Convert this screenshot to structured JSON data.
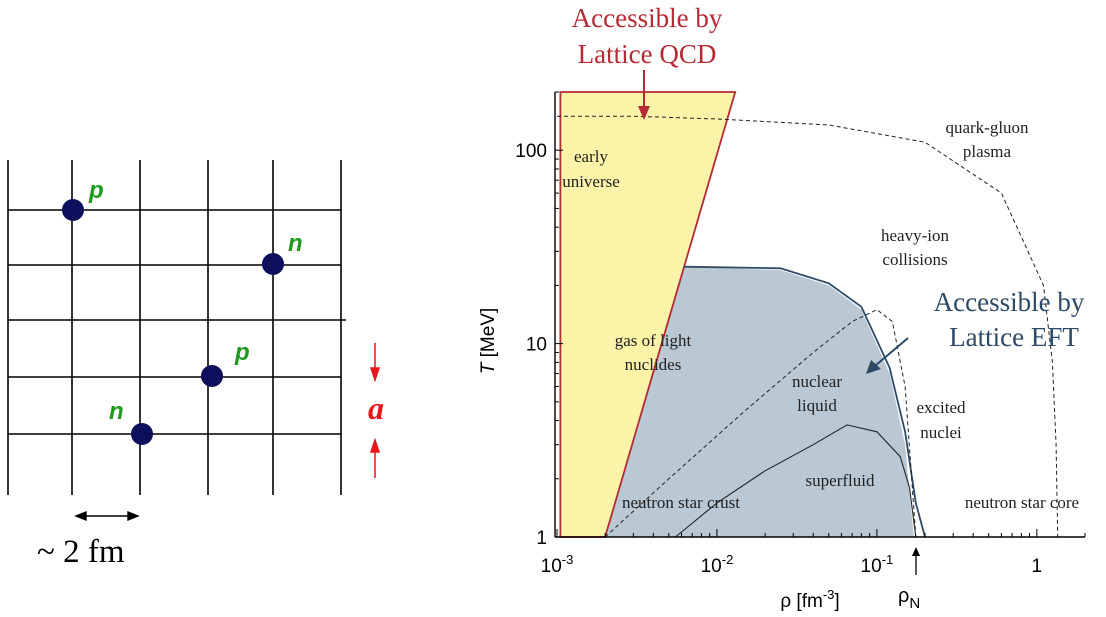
{
  "lattice": {
    "particles": [
      {
        "label": "p"
      },
      {
        "label": "n"
      },
      {
        "label": "p"
      },
      {
        "label": "n"
      }
    ],
    "spacing_label": "~ 2 fm",
    "a_label": "a",
    "particle_color": "#0b0f5c",
    "label_color": "#1e9b1e",
    "a_color": "#e8161b"
  },
  "phase_diagram": {
    "lattice_qcd_label": [
      "Accessible by",
      "Lattice QCD"
    ],
    "lattice_eft_label": [
      "Accessible by",
      "Lattice EFT"
    ],
    "qcd_color": "#b52a33",
    "eft_color": "#2d4a66",
    "qcd_fill": "#fbf3a8",
    "eft_fill": "#b9c8d3",
    "regions": {
      "early_universe": [
        "early",
        "universe"
      ],
      "qgp": [
        "quark-gluon",
        "plasma"
      ],
      "heavy_ion": [
        "heavy-ion",
        "collisions"
      ],
      "gas": [
        "gas of light",
        "nuclides"
      ],
      "nuclear_liquid": [
        "nuclear",
        "liquid"
      ],
      "excited_nuclei": [
        "excited",
        "nuclei"
      ],
      "superfluid": "superfluid",
      "ns_crust": "neutron star crust",
      "ns_core": "neutron star core"
    },
    "axis": {
      "ylabel_italic": "T",
      "ylabel_rest": " [MeV]",
      "xlabel_pre": "ρ [fm",
      "xlabel_sup": "-3",
      "xlabel_post": "]",
      "rho_n_label": "ρ",
      "rho_n_sub": "N"
    }
  },
  "chart_data": {
    "type": "area",
    "xscale": "log",
    "yscale": "log",
    "xlim": [
      0.001,
      2
    ],
    "ylim": [
      1,
      200
    ],
    "xticks": [
      {
        "value": 0.001,
        "base": "10",
        "exp": "-3"
      },
      {
        "value": 0.01,
        "base": "10",
        "exp": "-2"
      },
      {
        "value": 0.1,
        "base": "10",
        "exp": "-1"
      },
      {
        "value": 1,
        "base": "1",
        "exp": ""
      }
    ],
    "yticks": [
      {
        "value": 1,
        "label": "1"
      },
      {
        "value": 10,
        "label": "10"
      },
      {
        "value": 100,
        "label": "100"
      }
    ],
    "rho_N": 0.16,
    "lattice_qcd_region": [
      [
        0.00105,
        1.0
      ],
      [
        0.00105,
        200
      ],
      [
        0.013,
        200
      ],
      [
        0.002,
        1.0
      ]
    ],
    "lattice_eft_region": [
      [
        0.00105,
        1.0
      ],
      [
        0.00105,
        25
      ],
      [
        0.0062,
        25
      ],
      [
        0.025,
        24
      ],
      [
        0.05,
        20
      ],
      [
        0.08,
        15
      ],
      [
        0.12,
        7
      ],
      [
        0.15,
        3
      ],
      [
        0.17,
        1.0
      ]
    ],
    "qgp_boundary": [
      [
        0.001,
        150
      ],
      [
        0.003,
        150
      ],
      [
        0.01,
        145
      ],
      [
        0.05,
        135
      ],
      [
        0.2,
        110
      ],
      [
        0.6,
        60
      ],
      [
        1.1,
        20
      ],
      [
        1.25,
        8
      ],
      [
        1.32,
        3
      ],
      [
        1.35,
        1.0
      ]
    ],
    "liquid_gas_boundary": [
      [
        0.002,
        1.0
      ],
      [
        0.005,
        2.0
      ],
      [
        0.015,
        4.5
      ],
      [
        0.04,
        9
      ],
      [
        0.07,
        13
      ],
      [
        0.1,
        15
      ],
      [
        0.125,
        13
      ],
      [
        0.15,
        6
      ],
      [
        0.165,
        2
      ],
      [
        0.175,
        1.0
      ]
    ],
    "superfluid_boundary": [
      [
        0.0055,
        1.0
      ],
      [
        0.01,
        1.5
      ],
      [
        0.02,
        2.2
      ],
      [
        0.04,
        3.0
      ],
      [
        0.065,
        3.8
      ],
      [
        0.1,
        3.5
      ],
      [
        0.14,
        2.6
      ],
      [
        0.16,
        1.8
      ],
      [
        0.175,
        1.0
      ]
    ],
    "outer_solid_boundary": [
      [
        0.0062,
        25
      ],
      [
        0.025,
        24.5
      ],
      [
        0.05,
        20.5
      ],
      [
        0.08,
        15.5
      ],
      [
        0.12,
        7.5
      ],
      [
        0.15,
        3.5
      ],
      [
        0.175,
        1.5
      ],
      [
        0.2,
        1.0
      ]
    ]
  }
}
